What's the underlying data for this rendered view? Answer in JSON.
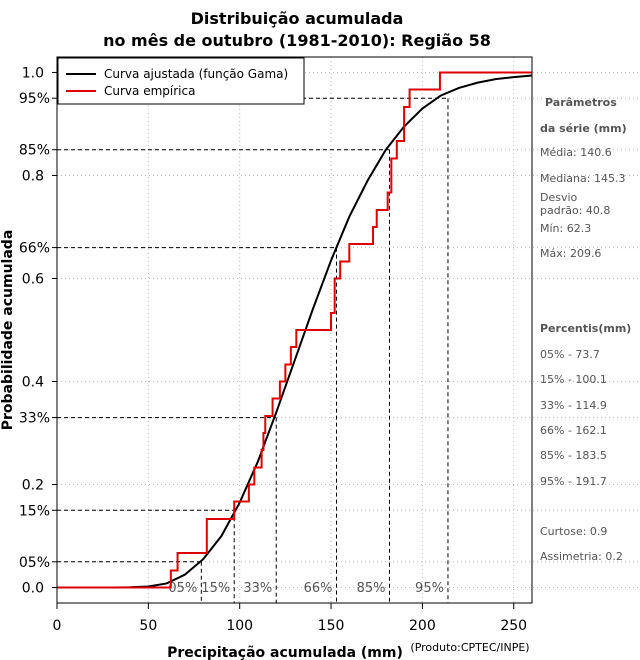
{
  "chart_data": {
    "type": "line",
    "title": [
      "Distribuição acumulada",
      "no mês de outubro (1981-2010): Região 58"
    ],
    "xlabel": "Precipitação acumulada (mm)",
    "ylabel": "Probabilidade acumulada",
    "credit": "(Produto:CPTEC/INPE)",
    "xlim": [
      0,
      260
    ],
    "ylim": [
      -0.03,
      1.03
    ],
    "x_ticks": [
      0,
      50,
      100,
      150,
      200,
      250
    ],
    "x_tick_labels": [
      "0",
      "50",
      "100",
      "150",
      "200",
      "250"
    ],
    "y_ticks": [
      0.0,
      0.2,
      0.4,
      0.6,
      0.8,
      1.0
    ],
    "y_tick_labels": [
      "0.0",
      "0.2",
      "0.4",
      "0.6",
      "0.8",
      "1.0"
    ],
    "grid": true,
    "legend": {
      "position": "top-left",
      "entries": [
        {
          "label": "Curva ajustada (função Gama)",
          "color": "#000000"
        },
        {
          "label": "Curva empírica",
          "color": "#dd0000"
        }
      ]
    },
    "series": [
      {
        "name": "Curva ajustada (função Gama)",
        "color": "#000000",
        "x": [
          0,
          30,
          40,
          50,
          60,
          70,
          80,
          90,
          100,
          110,
          120,
          130,
          140,
          150,
          160,
          170,
          180,
          190,
          200,
          210,
          220,
          230,
          240,
          250,
          260
        ],
        "y": [
          0.0,
          0.0,
          0.0005,
          0.002,
          0.008,
          0.025,
          0.055,
          0.1,
          0.165,
          0.245,
          0.34,
          0.44,
          0.54,
          0.635,
          0.72,
          0.79,
          0.85,
          0.895,
          0.93,
          0.955,
          0.97,
          0.98,
          0.987,
          0.991,
          0.994
        ]
      },
      {
        "name": "Curva empírica",
        "color": "#dd0000",
        "step": true,
        "x": [
          0,
          62.3,
          66,
          82,
          97,
          105,
          108,
          112,
          113,
          114,
          118,
          122,
          125,
          128,
          131,
          138,
          150,
          152,
          155,
          160,
          173,
          175,
          181,
          183,
          186,
          190,
          193,
          209.6,
          260
        ],
        "y": [
          0.0,
          0.033,
          0.067,
          0.133,
          0.167,
          0.2,
          0.233,
          0.267,
          0.3,
          0.333,
          0.367,
          0.4,
          0.433,
          0.467,
          0.5,
          0.5,
          0.533,
          0.6,
          0.633,
          0.667,
          0.7,
          0.733,
          0.767,
          0.833,
          0.867,
          0.933,
          0.967,
          1.0,
          1.0
        ]
      }
    ],
    "percentile_lines": [
      {
        "label": "05%",
        "y_label": "05%",
        "p": 0.05,
        "x": 79
      },
      {
        "label": "15%",
        "y_label": "15%",
        "p": 0.15,
        "x": 97
      },
      {
        "label": "33%",
        "y_label": "33%",
        "p": 0.33,
        "x": 120
      },
      {
        "label": "66%",
        "y_label": "66%",
        "p": 0.66,
        "x": 153
      },
      {
        "label": "85%",
        "y_label": "85%",
        "p": 0.85,
        "x": 182
      },
      {
        "label": "95%",
        "y_label": "95%",
        "p": 0.95,
        "x": 214
      }
    ]
  },
  "sidebar": {
    "params_title_1": "Parâmetros",
    "params_title_2": "da série (mm)",
    "media": "Média: 140.6",
    "mediana": "Mediana: 145.3",
    "desvio_1": "Desvio",
    "desvio_2": "padrão: 40.8",
    "min": "Mín: 62.3",
    "max": "Máx: 209.6",
    "percentis_title": "Percentis(mm)",
    "p05": "05% - 73.7",
    "p15": "15% - 100.1",
    "p33": "33% - 114.9",
    "p66": "66% - 162.1",
    "p85": "85% - 183.5",
    "p95": "95% - 191.7",
    "curtose": "Curtose: 0.9",
    "assimetria": "Assimetria: 0.2"
  }
}
